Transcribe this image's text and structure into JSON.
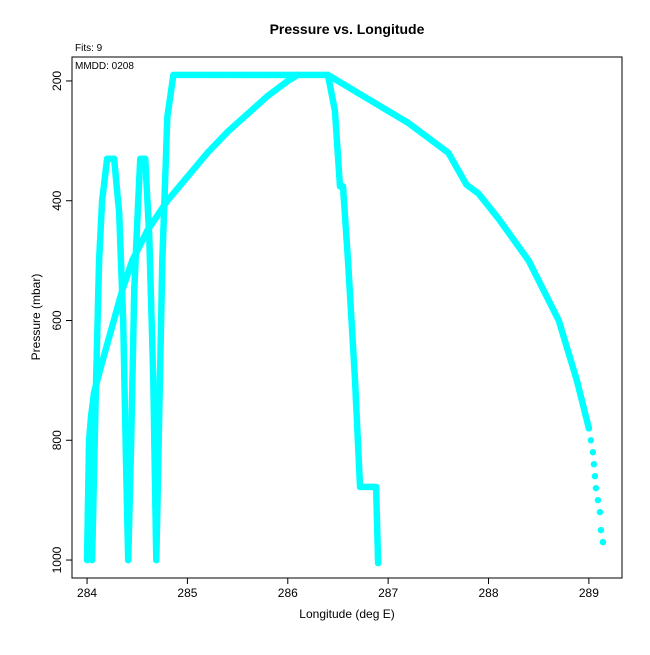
{
  "chart_data": {
    "type": "scatter",
    "title": "Pressure vs. Longitude",
    "xlabel": "Longitude (deg E)",
    "ylabel": "Pressure (mbar)",
    "annotations": {
      "fits": "Fits: 9",
      "mmdd": "MMDD: 0208"
    },
    "xlim": [
      283.85,
      289.33
    ],
    "ylim": [
      1030,
      160
    ],
    "y_reversed": true,
    "grid": false,
    "x_ticks": [
      284,
      285,
      286,
      287,
      288,
      289
    ],
    "y_ticks": [
      200,
      400,
      600,
      800,
      1000
    ],
    "series_color": "#00ffff",
    "segments": [
      {
        "pts": [
          [
            284.0,
            1000
          ],
          [
            284.01,
            900
          ],
          [
            284.02,
            800
          ],
          [
            284.04,
            760
          ],
          [
            284.07,
            720
          ],
          [
            284.15,
            670
          ],
          [
            284.25,
            610
          ],
          [
            284.35,
            550
          ],
          [
            284.45,
            500
          ],
          [
            284.6,
            450
          ],
          [
            284.8,
            400
          ],
          [
            285.0,
            360
          ],
          [
            285.2,
            320
          ],
          [
            285.4,
            285
          ],
          [
            285.6,
            255
          ],
          [
            285.8,
            225
          ],
          [
            286.0,
            200
          ],
          [
            286.1,
            190
          ]
        ]
      },
      {
        "pts": [
          [
            284.05,
            1000
          ],
          [
            284.07,
            850
          ],
          [
            284.09,
            700
          ],
          [
            284.12,
            500
          ],
          [
            284.15,
            400
          ],
          [
            284.2,
            330
          ],
          [
            284.27,
            330
          ],
          [
            284.32,
            420
          ],
          [
            284.36,
            600
          ],
          [
            284.39,
            850
          ],
          [
            284.41,
            1000
          ]
        ]
      },
      {
        "pts": [
          [
            284.41,
            1000
          ],
          [
            284.44,
            800
          ],
          [
            284.47,
            550
          ],
          [
            284.51,
            400
          ],
          [
            284.53,
            330
          ],
          [
            284.58,
            330
          ],
          [
            284.62,
            460
          ],
          [
            284.66,
            700
          ],
          [
            284.69,
            1000
          ]
        ]
      },
      {
        "pts": [
          [
            284.69,
            1000
          ],
          [
            284.72,
            750
          ],
          [
            284.75,
            500
          ],
          [
            284.8,
            260
          ],
          [
            284.86,
            190
          ],
          [
            286.4,
            190
          ],
          [
            286.47,
            250
          ],
          [
            286.52,
            376
          ],
          [
            286.55,
            376
          ],
          [
            286.6,
            500
          ],
          [
            286.67,
            700
          ],
          [
            286.72,
            878
          ],
          [
            286.88,
            878
          ],
          [
            286.9,
            1005
          ]
        ]
      },
      {
        "pts": [
          [
            286.4,
            190
          ],
          [
            286.8,
            230
          ],
          [
            287.2,
            270
          ],
          [
            287.6,
            320
          ],
          [
            287.78,
            373
          ],
          [
            287.9,
            388
          ],
          [
            288.1,
            430
          ],
          [
            288.4,
            500
          ],
          [
            288.7,
            600
          ],
          [
            288.88,
            700
          ],
          [
            289.0,
            780
          ]
        ]
      },
      {
        "pts": [
          [
            289.0,
            780
          ],
          [
            289.02,
            800
          ],
          [
            289.04,
            820
          ],
          [
            289.05,
            840
          ],
          [
            289.06,
            860
          ],
          [
            289.07,
            880
          ],
          [
            289.09,
            900
          ],
          [
            289.11,
            920
          ],
          [
            289.12,
            950
          ],
          [
            289.14,
            970
          ]
        ],
        "sparse": true
      }
    ]
  }
}
